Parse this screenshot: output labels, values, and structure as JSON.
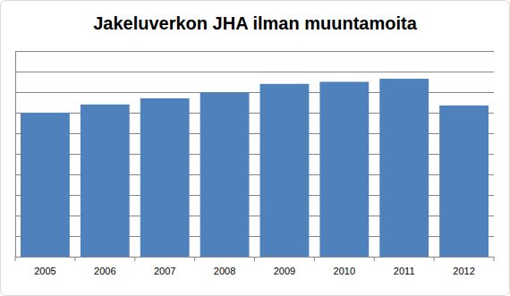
{
  "chart_data": {
    "type": "bar",
    "title": "Jakeluverkon JHA ilman muuntamoita",
    "categories": [
      "2005",
      "2006",
      "2007",
      "2008",
      "2009",
      "2010",
      "2011",
      "2012"
    ],
    "values": [
      7.0,
      7.4,
      7.7,
      8.0,
      8.4,
      8.5,
      8.65,
      7.35
    ],
    "color": "#4f81bd",
    "ylim": [
      0,
      10
    ],
    "yticks": [
      0,
      1,
      2,
      3,
      4,
      5,
      6,
      7,
      8,
      9,
      10
    ],
    "grid": true,
    "tick_labels": "x"
  }
}
